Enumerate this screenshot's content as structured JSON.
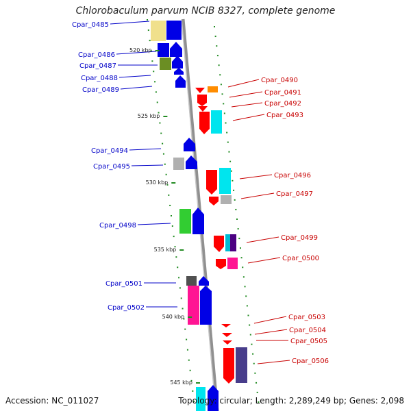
{
  "title": "Chlorobaculum parvum NCIB 8327, complete genome",
  "footer": {
    "accession": "Accession: NC_011027",
    "topology": "Topology: circular; Length: 2,289,249 bp; Genes: 2,098"
  },
  "colors": {
    "left_label": "#0000c8",
    "right_label": "#c80000",
    "backbone": "#909090",
    "tick": "#228b22"
  },
  "scale_labels": [
    "520 kbp",
    "525 kbp",
    "530 kbp",
    "535 kbp",
    "540 kbp",
    "545 kbp"
  ],
  "left_genes": [
    {
      "label": "Cpar_0485",
      "color": "#f0e08c"
    },
    {
      "label": "Cpar_0486",
      "color": "#0000e6"
    },
    {
      "label": "Cpar_0487",
      "color": "#6b8e23"
    },
    {
      "label": "Cpar_0488",
      "color": "#0000e6"
    },
    {
      "label": "Cpar_0489",
      "color": "#0000e6"
    },
    {
      "label": "Cpar_0494",
      "color": "#0000e6"
    },
    {
      "label": "Cpar_0495",
      "color": "#b0b0b0"
    },
    {
      "label": "Cpar_0498",
      "color": "#32cd32"
    },
    {
      "label": "Cpar_0501",
      "color": "#505050"
    },
    {
      "label": "Cpar_0502",
      "color": "#ff1493"
    }
  ],
  "right_genes": [
    {
      "label": "Cpar_0490",
      "color": "#ff8c00"
    },
    {
      "label": "Cpar_0491",
      "color": "#ff0000"
    },
    {
      "label": "Cpar_0492",
      "color": "#ff0000"
    },
    {
      "label": "Cpar_0493",
      "color": "#00e5ee"
    },
    {
      "label": "Cpar_0496",
      "color": "#00e5ee"
    },
    {
      "label": "Cpar_0497",
      "color": "#b0b0b0"
    },
    {
      "label": "Cpar_0499",
      "color": "#4b0082"
    },
    {
      "label": "Cpar_0500",
      "color": "#ff1493"
    },
    {
      "label": "Cpar_0503",
      "color": "#ff0000"
    },
    {
      "label": "Cpar_0504",
      "color": "#ff0000"
    },
    {
      "label": "Cpar_0505",
      "color": "#ff0000"
    },
    {
      "label": "Cpar_0506",
      "color": "#483d8b"
    }
  ]
}
